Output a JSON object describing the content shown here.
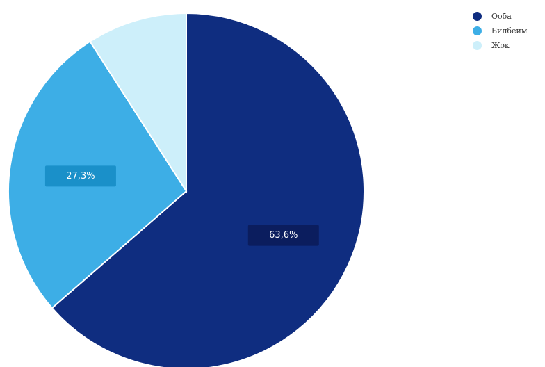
{
  "chart_data": {
    "type": "pie",
    "start_angle_deg": 0,
    "direction": "clockwise",
    "legend_position": "top-right",
    "slices": [
      {
        "name": "Ооба",
        "value": 63.6,
        "label": "63,6%",
        "color": "#0f2d80",
        "label_bg": "#0b1d5e"
      },
      {
        "name": "Билбейм",
        "value": 27.3,
        "label": "27,3%",
        "color": "#3daee6",
        "label_bg": "#1a90c9"
      },
      {
        "name": "Жок",
        "value": 9.1,
        "label": "",
        "color": "#cdeffa",
        "label_bg": ""
      }
    ]
  }
}
